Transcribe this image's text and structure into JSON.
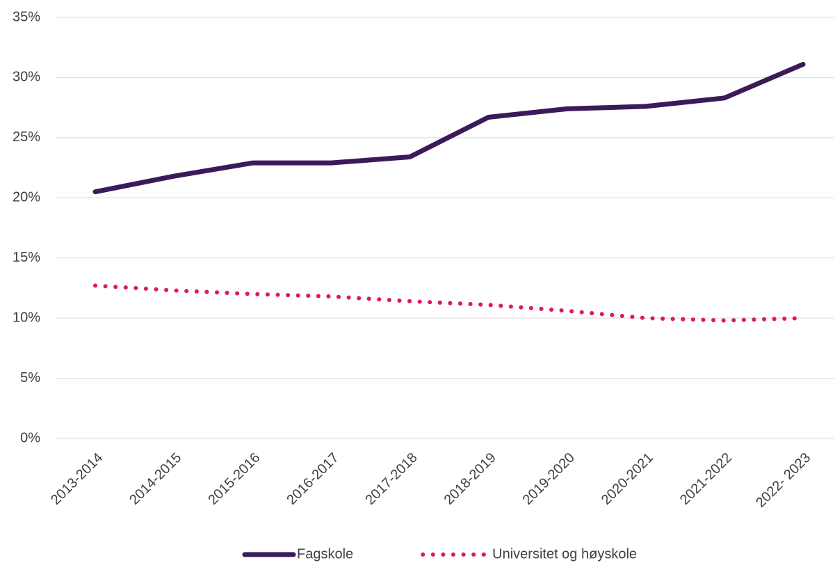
{
  "chart_data": {
    "type": "line",
    "categories": [
      "2013-2014",
      "2014-2015",
      "2015-2016",
      "2016-2017",
      "2017-2018",
      "2018-2019",
      "2019-2020",
      "2020-2021",
      "2021-2022",
      "2022- 2023"
    ],
    "series": [
      {
        "name": "Fagskole",
        "color": "#3b1a5a",
        "style": "solid",
        "values": [
          20.5,
          21.8,
          22.9,
          22.9,
          23.4,
          26.7,
          27.4,
          27.6,
          28.3,
          31.1
        ]
      },
      {
        "name": "Universitet og høyskole",
        "color": "#e0156b",
        "style": "dotted",
        "values": [
          12.7,
          12.3,
          12.0,
          11.8,
          11.4,
          11.1,
          10.6,
          10.0,
          9.8,
          10.0
        ]
      }
    ],
    "ylim": [
      0,
      35
    ],
    "yticks": [
      {
        "value": 0,
        "label": "0%"
      },
      {
        "value": 5,
        "label": "5%"
      },
      {
        "value": 10,
        "label": "10%"
      },
      {
        "value": 15,
        "label": "15%"
      },
      {
        "value": 20,
        "label": "20%"
      },
      {
        "value": 25,
        "label": "25%"
      },
      {
        "value": 30,
        "label": "30%"
      },
      {
        "value": 35,
        "label": "35%"
      }
    ],
    "grid": true,
    "legend": "bottom"
  }
}
